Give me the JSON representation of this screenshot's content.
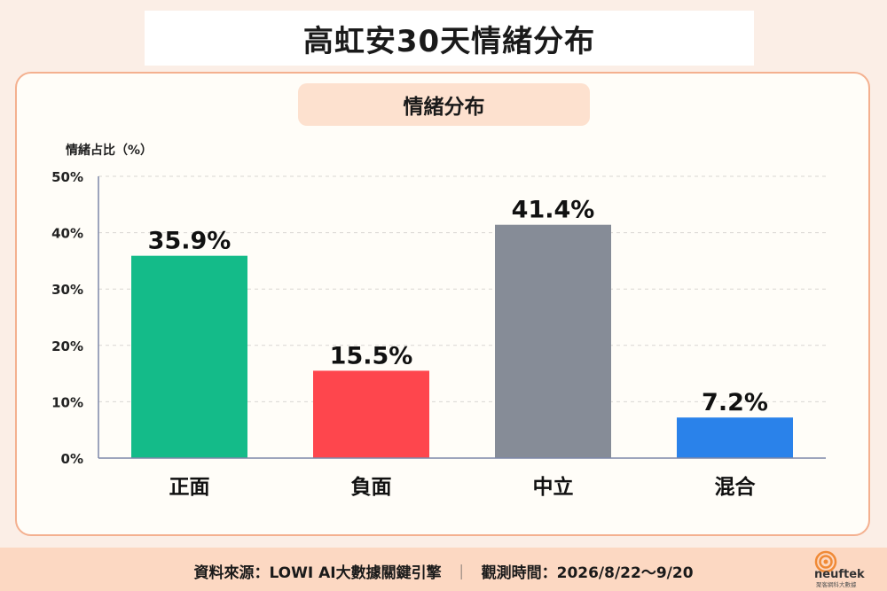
{
  "header": {
    "title": "高虹安30天情緒分布"
  },
  "chart_card": {
    "subtitle": "情緒分布"
  },
  "chart_data": {
    "type": "bar",
    "ylabel": "情緒占比（%）",
    "categories": [
      "正面",
      "負面",
      "中立",
      "混合"
    ],
    "values": [
      35.9,
      15.5,
      41.4,
      7.2
    ],
    "value_labels": [
      "35.9%",
      "15.5%",
      "41.4%",
      "7.2%"
    ],
    "colors": [
      "#14bb89",
      "#fe464d",
      "#868c97",
      "#2a82ea"
    ],
    "ylim": [
      0,
      50
    ],
    "yticks": [
      0,
      10,
      20,
      30,
      40,
      50
    ],
    "ytick_labels": [
      "0%",
      "10%",
      "20%",
      "30%",
      "40%",
      "50%"
    ],
    "grid": "horizontal dashed",
    "legend": "none"
  },
  "footer": {
    "source": "資料來源：LOWI AI大數據關鍵引擎",
    "separator": "｜",
    "period": "觀測時間：2026/8/22～9/20"
  },
  "logo": {
    "name": "neuftek",
    "tagline": "聚客網科大數據",
    "icon": "concentric-circle-logo-icon",
    "color": "#f08a36"
  }
}
